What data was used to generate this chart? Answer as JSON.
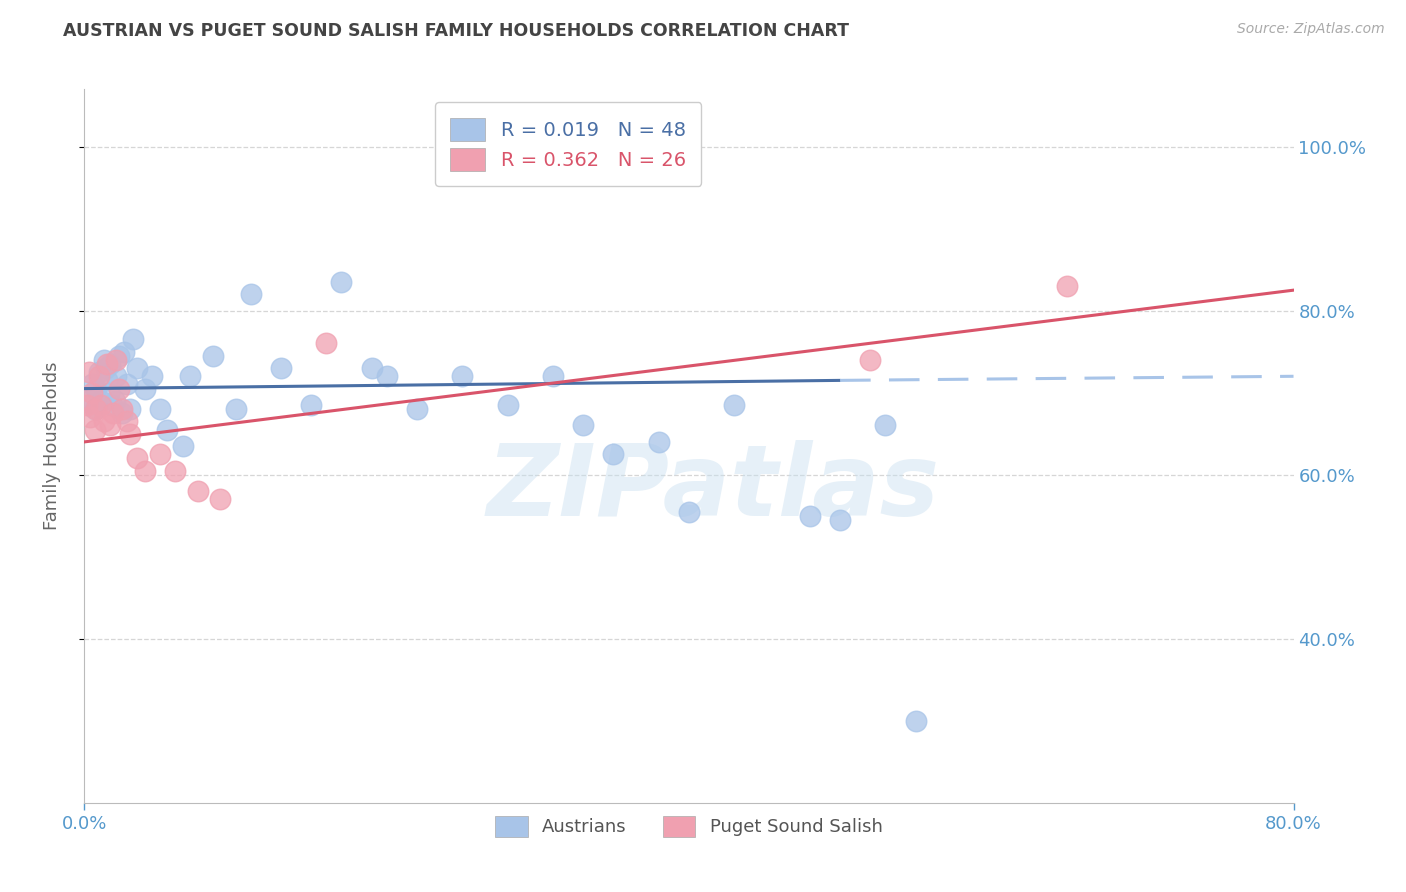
{
  "title": "AUSTRIAN VS PUGET SOUND SALISH FAMILY HOUSEHOLDS CORRELATION CHART",
  "source": "Source: ZipAtlas.com",
  "ylabel": "Family Households",
  "watermark": "ZIPatlas",
  "legend_austrians": "Austrians",
  "legend_salish": "Puget Sound Salish",
  "R_austrians": 0.019,
  "N_austrians": 48,
  "R_salish": 0.362,
  "N_salish": 26,
  "blue_color": "#a8c4e8",
  "pink_color": "#f0a0b0",
  "blue_line_color": "#4a6fa5",
  "pink_line_color": "#d9546a",
  "title_color": "#444444",
  "axis_tick_color": "#5599cc",
  "grid_color": "#cccccc",
  "background_color": "#ffffff",
  "austrians_x": [
    0.3,
    0.5,
    0.7,
    0.8,
    1.0,
    1.1,
    1.3,
    1.4,
    1.5,
    1.6,
    1.7,
    1.8,
    2.0,
    2.1,
    2.3,
    2.5,
    2.6,
    2.8,
    3.0,
    3.2,
    3.5,
    4.0,
    4.5,
    5.0,
    5.5,
    6.5,
    7.0,
    8.5,
    10.0,
    11.0,
    13.0,
    15.0,
    17.0,
    19.0,
    22.0,
    25.0,
    28.0,
    31.0,
    35.0,
    38.0,
    40.0,
    43.0,
    48.0,
    50.0,
    53.0,
    33.0,
    20.0,
    55.0
  ],
  "austrians_y": [
    69.5,
    71.0,
    68.0,
    70.5,
    72.5,
    69.0,
    74.0,
    73.0,
    71.5,
    70.0,
    73.5,
    68.5,
    69.0,
    72.0,
    74.5,
    67.5,
    75.0,
    71.0,
    68.0,
    76.5,
    73.0,
    70.5,
    72.0,
    68.0,
    65.5,
    63.5,
    72.0,
    74.5,
    68.0,
    82.0,
    73.0,
    68.5,
    83.5,
    73.0,
    68.0,
    72.0,
    68.5,
    72.0,
    62.5,
    64.0,
    55.5,
    68.5,
    55.0,
    54.5,
    66.0,
    66.0,
    72.0,
    30.0
  ],
  "salish_x": [
    0.2,
    0.3,
    0.4,
    0.5,
    0.7,
    0.8,
    1.0,
    1.1,
    1.3,
    1.5,
    1.7,
    1.9,
    2.1,
    2.3,
    2.5,
    2.8,
    3.0,
    3.5,
    4.0,
    5.0,
    6.0,
    7.5,
    9.0,
    16.0,
    52.0,
    65.0
  ],
  "salish_y": [
    68.5,
    72.5,
    67.0,
    70.0,
    65.5,
    68.0,
    72.0,
    68.5,
    66.5,
    73.5,
    66.0,
    67.5,
    74.0,
    70.5,
    68.0,
    66.5,
    65.0,
    62.0,
    60.5,
    62.5,
    60.5,
    58.0,
    57.0,
    76.0,
    74.0,
    83.0
  ],
  "xmin": 0.0,
  "xmax": 80.0,
  "ymin": 20.0,
  "ymax": 107.0,
  "yticks": [
    40.0,
    60.0,
    80.0,
    100.0
  ],
  "xticks_show": [
    0.0,
    80.0
  ],
  "blue_solid_end": 50.0,
  "blue_line_y_at_0": 70.5,
  "blue_line_y_at_50": 71.5,
  "blue_line_y_at_80": 72.0,
  "pink_line_y_at_0": 64.0,
  "pink_line_y_at_80": 82.5
}
